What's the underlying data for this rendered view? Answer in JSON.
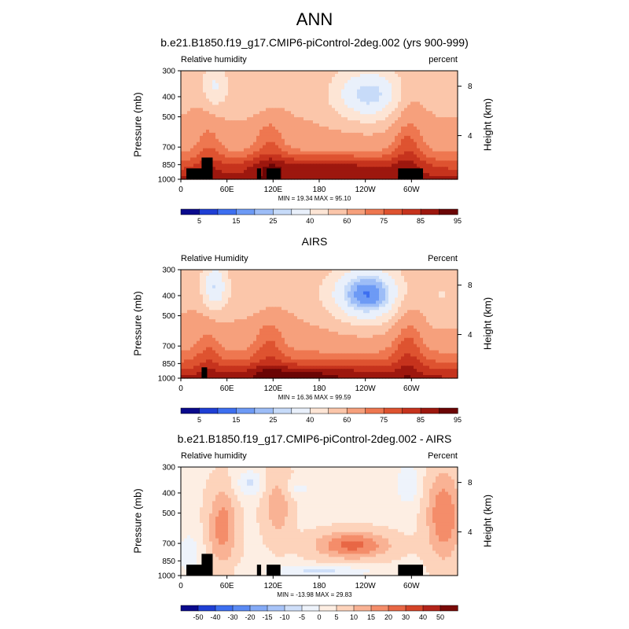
{
  "main_title": "ANN",
  "chart_data": [
    {
      "type": "heatmap",
      "title": "b.e21.B1850.f19_g17.CMIP6-piControl-2deg.002 (yrs 900-999)",
      "left_label": "Relative humidity",
      "right_label": "percent",
      "ylabel": "Pressure (mb)",
      "y2label": "Height (km)",
      "yticks": [
        "300",
        "400",
        "500",
        "700",
        "850",
        "1000"
      ],
      "y2ticks": [
        "8",
        "4"
      ],
      "xticks": [
        "0",
        "60E",
        "120E",
        "180",
        "120W",
        "60W"
      ],
      "minmax": "MIN = 19.34  MAX = 95.10",
      "colorbar_labels": [
        "5",
        "15",
        "25",
        "40",
        "60",
        "75",
        "85",
        "95"
      ]
    },
    {
      "type": "heatmap",
      "title": "AIRS",
      "left_label": "Relative Humidity",
      "right_label": "Percent",
      "ylabel": "Pressure (mb)",
      "y2label": "Height (km)",
      "yticks": [
        "300",
        "400",
        "500",
        "700",
        "850",
        "1000"
      ],
      "y2ticks": [
        "8",
        "4"
      ],
      "xticks": [
        "0",
        "60E",
        "120E",
        "180",
        "120W",
        "60W"
      ],
      "minmax": "MIN = 16.36  MAX = 99.59",
      "colorbar_labels": [
        "5",
        "15",
        "25",
        "40",
        "60",
        "75",
        "85",
        "95"
      ]
    },
    {
      "type": "heatmap",
      "title": "b.e21.B1850.f19_g17.CMIP6-piControl-2deg.002 - AIRS",
      "left_label": "Relative humidity",
      "right_label": "Percent",
      "ylabel": "Pressure (mb)",
      "y2label": "Height (km)",
      "yticks": [
        "300",
        "400",
        "500",
        "700",
        "850",
        "1000"
      ],
      "y2ticks": [
        "8",
        "4"
      ],
      "xticks": [
        "0",
        "60E",
        "120E",
        "180",
        "120W",
        "60W"
      ],
      "minmax": "MIN = -13.98  MAX = 29.83",
      "colorbar_labels": [
        "-50",
        "-40",
        "-30",
        "-20",
        "-15",
        "-10",
        "-5",
        "0",
        "5",
        "10",
        "15",
        "20",
        "30",
        "40",
        "50"
      ]
    }
  ],
  "colors": {
    "abs_colorbar": [
      "#0a0a8c",
      "#1f3fd4",
      "#3d6ff0",
      "#6d9af5",
      "#9dbdf7",
      "#c7dbf9",
      "#e9f0fb",
      "#fde5d5",
      "#fbc6aa",
      "#f6a07c",
      "#ee7750",
      "#de5330",
      "#c6331d",
      "#9d170e",
      "#6b0505"
    ],
    "diff_colorbar": [
      "#0a0a8c",
      "#1f3fd4",
      "#3d6ff0",
      "#5a8af3",
      "#84aaf6",
      "#a8c4f8",
      "#cfdff9",
      "#eef3fb",
      "#fdeee3",
      "#fdd3bb",
      "#f9b294",
      "#f48d6a",
      "#e86745",
      "#d44428",
      "#b3241a",
      "#7a0a08"
    ]
  }
}
